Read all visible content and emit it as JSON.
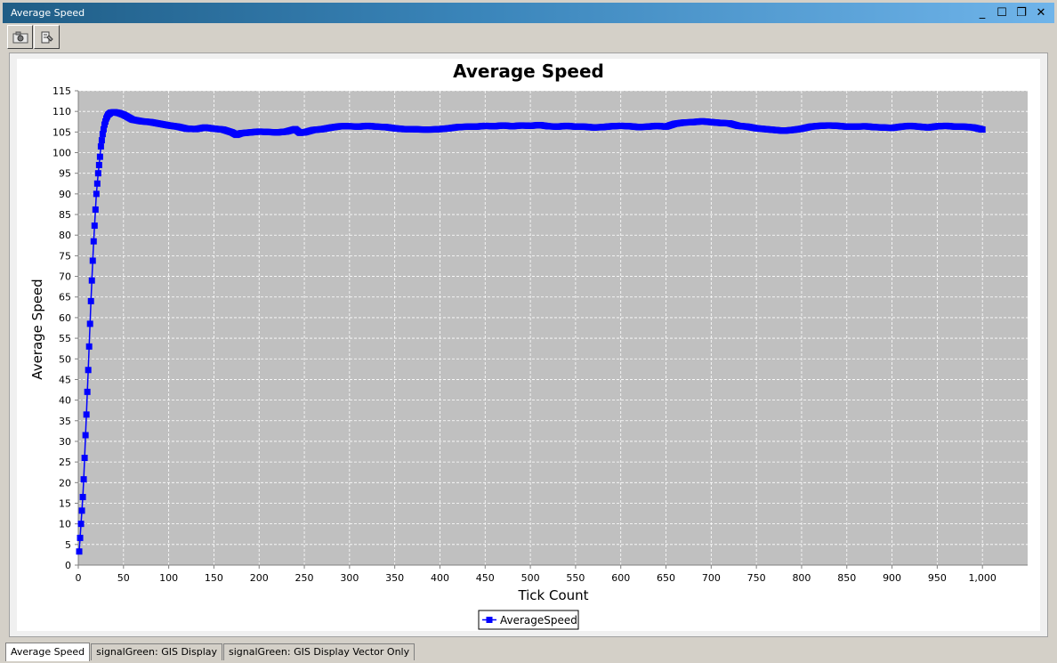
{
  "window": {
    "title": "Average Speed"
  },
  "toolbar": {
    "snapshot_icon": "camera-icon",
    "properties_icon": "chart-properties-icon"
  },
  "tabs": [
    {
      "label": "Average Speed",
      "active": true
    },
    {
      "label": "signalGreen: GIS Display",
      "active": false
    },
    {
      "label": "signalGreen: GIS Display Vector Only",
      "active": false
    }
  ],
  "colors": {
    "series": "#0000ff",
    "plot_bg": "#c0c0c0",
    "grid": "#ffffff"
  },
  "chart_data": {
    "type": "line",
    "title": "Average Speed",
    "xlabel": "Tick Count",
    "ylabel": "Average Speed",
    "xlim": [
      0,
      1050
    ],
    "ylim": [
      0,
      115
    ],
    "xticks": [
      "0",
      "50",
      "100",
      "150",
      "200",
      "250",
      "300",
      "350",
      "400",
      "450",
      "500",
      "550",
      "600",
      "650",
      "700",
      "750",
      "800",
      "850",
      "900",
      "950",
      "1,000"
    ],
    "yticks": [
      "0",
      "5",
      "10",
      "15",
      "20",
      "25",
      "30",
      "35",
      "40",
      "45",
      "50",
      "55",
      "60",
      "65",
      "70",
      "75",
      "80",
      "85",
      "90",
      "95",
      "100",
      "105",
      "110",
      "115"
    ],
    "grid": true,
    "legend_position": "bottom-center",
    "series": [
      {
        "name": "AverageSpeed",
        "color": "#0000ff",
        "x": [
          1,
          2,
          3,
          4,
          5,
          6,
          7,
          8,
          9,
          10,
          11,
          12,
          13,
          14,
          15,
          16,
          17,
          18,
          19,
          20,
          21,
          22,
          23,
          24,
          25,
          27,
          29,
          31,
          33,
          36,
          40,
          45,
          50,
          55,
          60,
          70,
          80,
          90,
          100,
          110,
          120,
          130,
          140,
          150,
          160,
          170,
          175,
          180,
          190,
          200,
          210,
          220,
          230,
          240,
          245,
          250,
          260,
          270,
          280,
          290,
          300,
          310,
          320,
          330,
          340,
          350,
          360,
          370,
          380,
          390,
          400,
          410,
          420,
          430,
          440,
          450,
          460,
          470,
          480,
          490,
          500,
          510,
          520,
          530,
          540,
          550,
          560,
          570,
          580,
          590,
          600,
          610,
          620,
          630,
          640,
          650,
          660,
          670,
          680,
          690,
          700,
          710,
          720,
          730,
          740,
          750,
          760,
          770,
          780,
          790,
          800,
          810,
          820,
          830,
          840,
          850,
          860,
          870,
          880,
          890,
          900,
          910,
          920,
          930,
          940,
          950,
          960,
          970,
          980,
          990,
          1000
        ],
        "y": [
          3.3,
          6.6,
          10.0,
          13.2,
          16.5,
          20.8,
          26.0,
          31.5,
          36.5,
          42.0,
          47.3,
          53.0,
          58.5,
          64.0,
          69.0,
          73.8,
          78.5,
          82.3,
          86.2,
          90.0,
          92.5,
          95.0,
          97.0,
          99.0,
          101.5,
          104.5,
          106.8,
          108.3,
          109.2,
          109.7,
          109.8,
          109.6,
          109.2,
          108.6,
          108.0,
          107.6,
          107.4,
          107.0,
          106.6,
          106.3,
          105.8,
          105.7,
          106.1,
          105.8,
          105.6,
          104.9,
          104.3,
          104.7,
          104.9,
          105.1,
          105.0,
          104.9,
          105.1,
          105.7,
          104.8,
          104.9,
          105.5,
          105.7,
          106.1,
          106.4,
          106.4,
          106.3,
          106.5,
          106.3,
          106.2,
          105.9,
          105.7,
          105.7,
          105.6,
          105.6,
          105.7,
          105.9,
          106.2,
          106.3,
          106.3,
          106.5,
          106.4,
          106.6,
          106.4,
          106.6,
          106.5,
          106.7,
          106.4,
          106.3,
          106.5,
          106.3,
          106.3,
          106.1,
          106.2,
          106.4,
          106.5,
          106.4,
          106.2,
          106.3,
          106.5,
          106.3,
          107.0,
          107.3,
          107.4,
          107.6,
          107.4,
          107.2,
          107.1,
          106.5,
          106.3,
          105.9,
          105.7,
          105.5,
          105.3,
          105.5,
          105.8,
          106.3,
          106.5,
          106.6,
          106.5,
          106.3,
          106.3,
          106.4,
          106.2,
          106.1,
          106.0,
          106.3,
          106.5,
          106.3,
          106.1,
          106.4,
          106.5,
          106.3,
          106.3,
          106.1,
          105.6
        ]
      }
    ]
  }
}
